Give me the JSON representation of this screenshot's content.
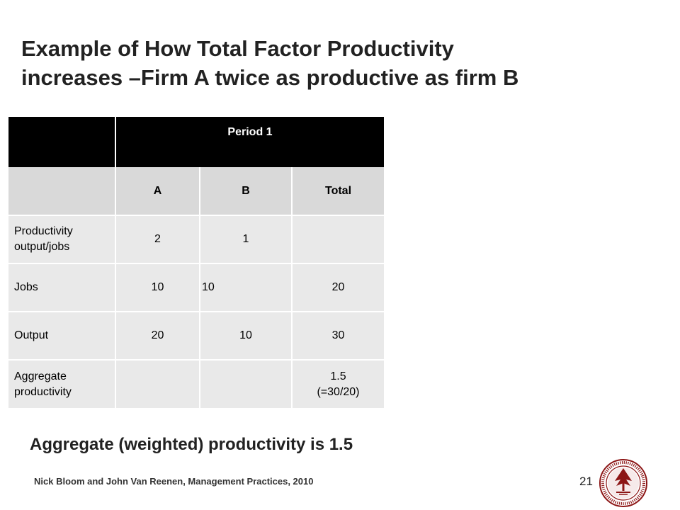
{
  "title": {
    "line1": "Example of How Total Factor Productivity",
    "line2": "increases –Firm A twice as productive as firm B"
  },
  "table": {
    "period_label": "Period 1",
    "subheaders": [
      "A",
      "B",
      "Total"
    ],
    "rows": [
      {
        "label_line1": "Productivity",
        "label_line2": "output/jobs",
        "a": "2",
        "b": "1",
        "total": ""
      },
      {
        "label_line1": "Jobs",
        "label_line2": "",
        "a": "10",
        "b": "10",
        "total": "20"
      },
      {
        "label_line1": "Output",
        "label_line2": "",
        "a": "20",
        "b": "10",
        "total": "30"
      },
      {
        "label_line1": "Aggregate",
        "label_line2": "productivity",
        "a": "",
        "b": "",
        "total_line1": "1.5",
        "total_line2": "(=30/20)"
      }
    ]
  },
  "summary": "Aggregate (weighted) productivity is 1.5",
  "footer": "Nick Bloom and John Van Reenen, Management Practices, 2010",
  "page_number": "21",
  "colors": {
    "header_bg": "#000000",
    "subheader_bg": "#d9d9d9",
    "cell_bg": "#e9e9e9",
    "seal_red": "#8c1515"
  },
  "logo": {
    "icon": "university-seal-icon",
    "text": "LELAND STANFORD JUNIOR UNIVERSITY"
  }
}
